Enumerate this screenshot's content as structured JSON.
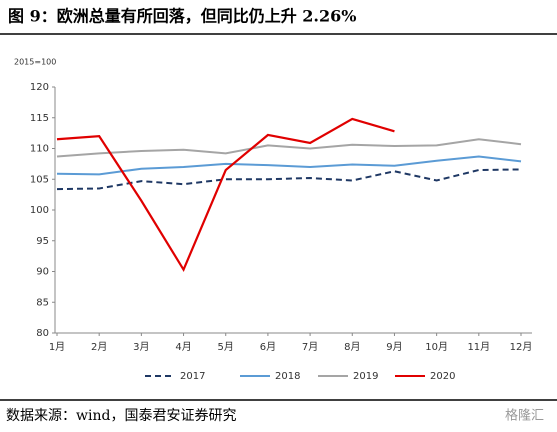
{
  "chart_data": {
    "type": "line",
    "title": "图 9：欧洲总量有所回落，但同比仍上升 2.26%",
    "y_label": "2015=100",
    "source": "数据来源：wind，国泰君安证券研究",
    "watermark": "格隆汇",
    "categories": [
      "1月",
      "2月",
      "3月",
      "4月",
      "5月",
      "6月",
      "7月",
      "8月",
      "9月",
      "10月",
      "11月",
      "12月"
    ],
    "ylim": [
      80,
      120
    ],
    "yticks": [
      80,
      85,
      90,
      95,
      100,
      105,
      110,
      115,
      120
    ],
    "grid": false,
    "legend": "bottom",
    "series": [
      {
        "name": "2017",
        "color": "#1f3864",
        "style": "dashed",
        "values": [
          103.4,
          103.5,
          104.7,
          104.2,
          105.0,
          105.0,
          105.2,
          104.8,
          106.3,
          104.8,
          106.5,
          106.6
        ]
      },
      {
        "name": "2018",
        "color": "#5b9bd5",
        "style": "solid",
        "values": [
          105.9,
          105.8,
          106.7,
          107.0,
          107.5,
          107.3,
          107.0,
          107.4,
          107.2,
          108.0,
          108.7,
          107.9
        ]
      },
      {
        "name": "2019",
        "color": "#a5a5a5",
        "style": "solid",
        "values": [
          108.7,
          109.2,
          109.6,
          109.8,
          109.2,
          110.5,
          110.0,
          110.6,
          110.4,
          110.5,
          111.5,
          110.7
        ]
      },
      {
        "name": "2020",
        "color": "#e00000",
        "style": "solid",
        "values": [
          111.5,
          112.0,
          101.5,
          90.3,
          106.5,
          112.2,
          110.9,
          114.8,
          112.8,
          null,
          null,
          null
        ]
      }
    ]
  }
}
